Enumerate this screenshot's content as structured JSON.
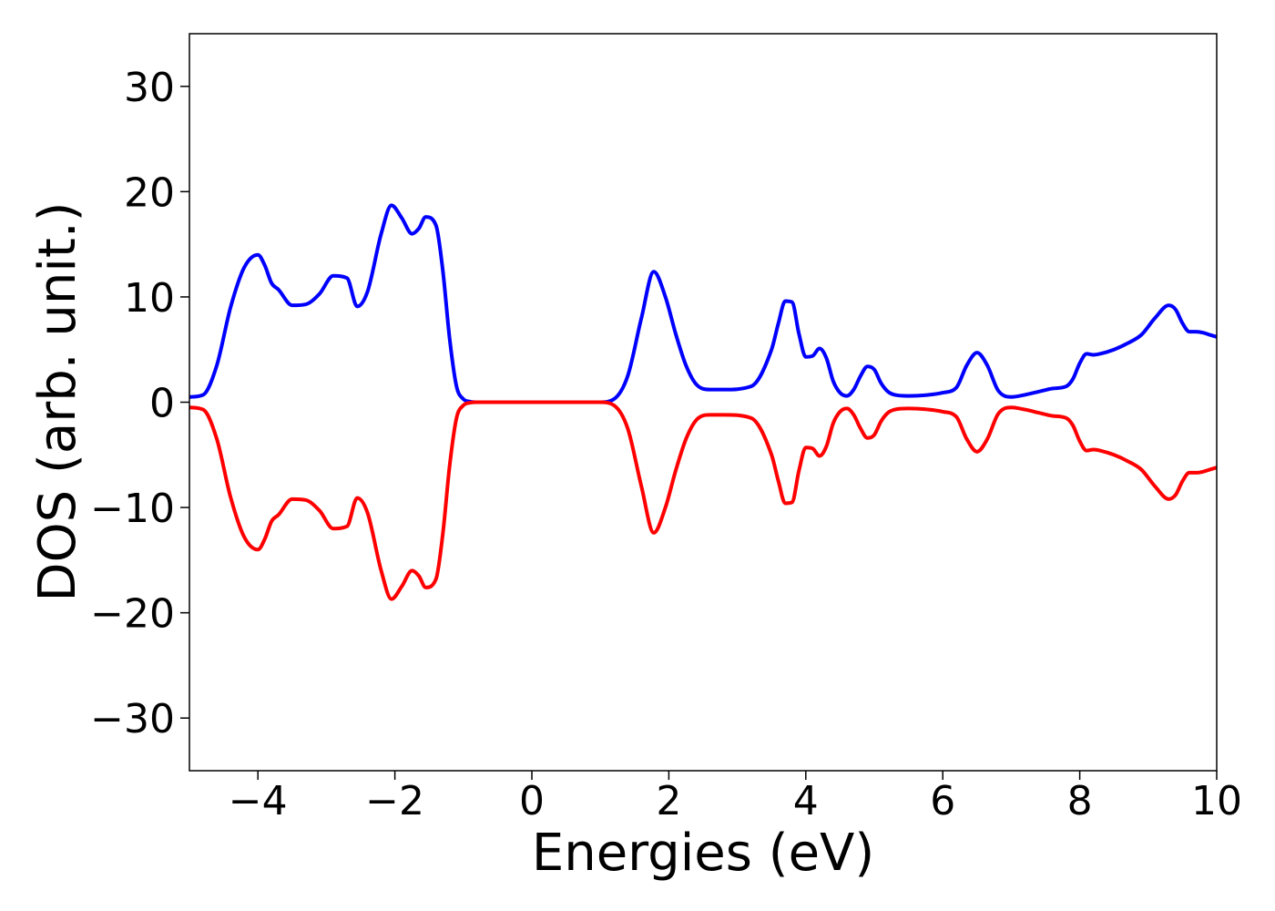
{
  "chart_data": {
    "type": "line",
    "title": "",
    "xlabel": "Energies (eV)",
    "ylabel": "DOS (arb. unit.)",
    "xlim": [
      -5,
      10
    ],
    "ylim": [
      -35,
      35
    ],
    "xticks": [
      -4,
      -2,
      0,
      2,
      4,
      6,
      8,
      10
    ],
    "yticks": [
      -30,
      -20,
      -10,
      0,
      10,
      20,
      30
    ],
    "xtick_labels": [
      "−4",
      "−2",
      "0",
      "2",
      "4",
      "6",
      "8",
      "10"
    ],
    "ytick_labels": [
      "−30",
      "−20",
      "−10",
      "0",
      "10",
      "20",
      "30"
    ],
    "grid": false,
    "legend": "none",
    "series": [
      {
        "color": "#0000ff",
        "x": [
          -5.0,
          -4.8,
          -4.6,
          -4.4,
          -4.2,
          -4.0,
          -3.9,
          -3.8,
          -3.7,
          -3.5,
          -3.3,
          -3.1,
          -2.9,
          -2.7,
          -2.55,
          -2.4,
          -2.2,
          -2.05,
          -1.9,
          -1.75,
          -1.65,
          -1.55,
          -1.4,
          -1.3,
          -1.2,
          -1.1,
          -1.0,
          -0.9,
          -0.8,
          -0.7,
          -0.6,
          -0.4,
          0.0,
          0.5,
          1.0,
          1.2,
          1.4,
          1.6,
          1.78,
          1.95,
          2.1,
          2.25,
          2.4,
          2.6,
          2.8,
          3.2,
          3.5,
          3.6,
          3.7,
          3.8,
          3.9,
          4.0,
          4.1,
          4.2,
          4.3,
          4.4,
          4.5,
          4.6,
          4.7,
          4.8,
          4.9,
          5.0,
          5.1,
          5.2,
          5.3,
          5.5,
          5.8,
          6.0,
          6.2,
          6.35,
          6.5,
          6.65,
          6.8,
          6.9,
          7.0,
          7.2,
          7.4,
          7.6,
          7.8,
          7.9,
          8.0,
          8.1,
          8.2,
          8.3,
          8.5,
          8.7,
          8.9,
          9.1,
          9.3,
          9.4,
          9.5,
          9.6,
          9.7,
          9.8,
          9.9,
          10.0
        ],
        "y": [
          0.5,
          0.7,
          3.5,
          9.0,
          12.8,
          14.0,
          13.0,
          11.3,
          10.7,
          9.2,
          9.3,
          10.3,
          12.0,
          11.8,
          9.1,
          10.5,
          16.0,
          18.7,
          17.5,
          16.0,
          16.5,
          17.6,
          16.8,
          12.5,
          6.0,
          1.5,
          0.3,
          0.05,
          0.0,
          0.0,
          0.0,
          0.0,
          0.0,
          0.0,
          0.0,
          0.3,
          2.5,
          8.0,
          12.4,
          10.0,
          6.5,
          3.5,
          1.7,
          1.2,
          1.2,
          1.5,
          5.0,
          7.5,
          9.6,
          9.5,
          6.5,
          4.3,
          4.4,
          5.1,
          4.2,
          2.0,
          0.9,
          0.6,
          1.2,
          2.5,
          3.4,
          3.1,
          1.8,
          1.0,
          0.7,
          0.6,
          0.7,
          0.9,
          1.4,
          3.5,
          4.7,
          3.5,
          1.2,
          0.6,
          0.5,
          0.7,
          1.0,
          1.3,
          1.5,
          2.2,
          3.7,
          4.6,
          4.5,
          4.6,
          5.0,
          5.6,
          6.4,
          8.0,
          9.2,
          8.8,
          7.5,
          6.7,
          6.7,
          6.6,
          6.4,
          6.2
        ]
      },
      {
        "color": "#ff0000",
        "x": [
          -5.0,
          -4.8,
          -4.6,
          -4.4,
          -4.2,
          -4.0,
          -3.9,
          -3.8,
          -3.7,
          -3.5,
          -3.3,
          -3.1,
          -2.9,
          -2.7,
          -2.55,
          -2.4,
          -2.2,
          -2.05,
          -1.9,
          -1.75,
          -1.65,
          -1.55,
          -1.4,
          -1.3,
          -1.2,
          -1.1,
          -1.0,
          -0.9,
          -0.8,
          -0.7,
          -0.6,
          -0.4,
          0.0,
          0.5,
          1.0,
          1.2,
          1.4,
          1.6,
          1.78,
          1.95,
          2.1,
          2.25,
          2.4,
          2.6,
          2.8,
          3.2,
          3.5,
          3.6,
          3.7,
          3.8,
          3.9,
          4.0,
          4.1,
          4.2,
          4.3,
          4.4,
          4.5,
          4.6,
          4.7,
          4.8,
          4.9,
          5.0,
          5.1,
          5.2,
          5.3,
          5.5,
          5.8,
          6.0,
          6.2,
          6.35,
          6.5,
          6.65,
          6.8,
          6.9,
          7.0,
          7.2,
          7.4,
          7.6,
          7.8,
          7.9,
          8.0,
          8.1,
          8.2,
          8.3,
          8.5,
          8.7,
          8.9,
          9.1,
          9.3,
          9.4,
          9.5,
          9.6,
          9.7,
          9.8,
          9.9,
          10.0
        ],
        "y": [
          -0.5,
          -0.7,
          -3.5,
          -9.0,
          -12.8,
          -14.0,
          -13.0,
          -11.3,
          -10.7,
          -9.2,
          -9.3,
          -10.3,
          -12.0,
          -11.8,
          -9.1,
          -10.5,
          -16.0,
          -18.7,
          -17.5,
          -16.0,
          -16.5,
          -17.6,
          -16.8,
          -12.5,
          -6.0,
          -1.5,
          -0.3,
          -0.05,
          0.0,
          0.0,
          0.0,
          0.0,
          0.0,
          0.0,
          0.0,
          -0.3,
          -2.5,
          -8.0,
          -12.4,
          -10.0,
          -6.5,
          -3.5,
          -1.7,
          -1.2,
          -1.2,
          -1.5,
          -5.0,
          -7.5,
          -9.6,
          -9.5,
          -6.5,
          -4.3,
          -4.4,
          -5.1,
          -4.2,
          -2.0,
          -0.9,
          -0.6,
          -1.2,
          -2.5,
          -3.4,
          -3.1,
          -1.8,
          -1.0,
          -0.7,
          -0.6,
          -0.7,
          -0.9,
          -1.4,
          -3.5,
          -4.7,
          -3.5,
          -1.2,
          -0.6,
          -0.5,
          -0.7,
          -1.0,
          -1.3,
          -1.5,
          -2.2,
          -3.7,
          -4.6,
          -4.5,
          -4.6,
          -5.0,
          -5.6,
          -6.4,
          -8.0,
          -9.2,
          -8.8,
          -7.5,
          -6.7,
          -6.7,
          -6.6,
          -6.4,
          -6.2
        ]
      }
    ]
  }
}
